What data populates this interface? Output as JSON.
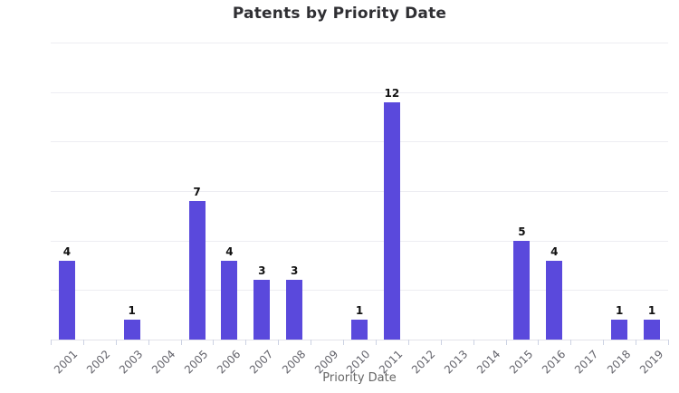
{
  "title": "Patents by Priority Date",
  "chart_data": {
    "type": "bar",
    "title": "Patents by Priority Date",
    "xlabel": "Priority Date",
    "ylabel": "",
    "categories": [
      "2001",
      "2002",
      "2003",
      "2004",
      "2005",
      "2006",
      "2007",
      "2008",
      "2009",
      "2010",
      "2011",
      "2012",
      "2013",
      "2014",
      "2015",
      "2016",
      "2017",
      "2018",
      "2019"
    ],
    "values": [
      4,
      0,
      1,
      0,
      7,
      4,
      3,
      3,
      0,
      1,
      12,
      0,
      0,
      0,
      5,
      4,
      0,
      1,
      1
    ],
    "ylim": [
      0,
      15
    ],
    "grid": true,
    "gridline_step": 2.5,
    "legend": "none",
    "colors": {
      "bar": "#5a49dc",
      "value_label": "#111111",
      "title": "#2f2f33",
      "year_label": "#63636b",
      "axis_title": "#666666",
      "gridline": "#ededf2",
      "baseline": "#e3e3ea",
      "tick": "#ccd2e3",
      "background": "#ffffff"
    }
  }
}
